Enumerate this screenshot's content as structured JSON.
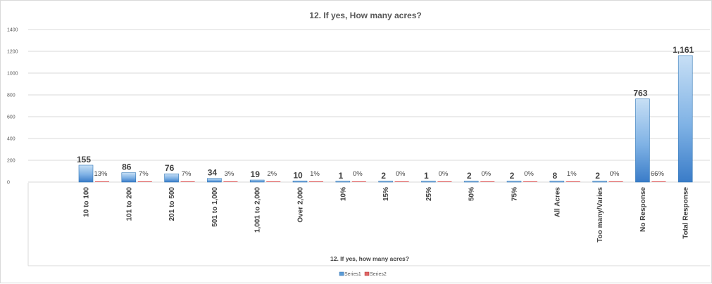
{
  "chart_data": {
    "type": "bar",
    "title": "12.  If yes, How many acres?",
    "xlabel": "12. If yes, how many acres?",
    "ylabel": "",
    "ylim": [
      0,
      1400
    ],
    "yticks": [
      0,
      200,
      400,
      600,
      800,
      1000,
      1200,
      1400
    ],
    "grid": true,
    "legend_position": "bottom",
    "categories": [
      "10 to 100",
      "101 to 200",
      "201 to 500",
      "501 to 1,000",
      "1,001 to 2,000",
      "Over 2,000",
      "10%",
      "15%",
      "25%",
      "50%",
      "75%",
      "All Acres",
      "Too many/Varies",
      "No Response",
      "Total Response"
    ],
    "series": [
      {
        "name": "Series1",
        "values": [
          155,
          86,
          76,
          34,
          19,
          10,
          1,
          2,
          1,
          2,
          2,
          8,
          2,
          763,
          1161
        ],
        "labels": [
          "155",
          "86",
          "76",
          "34",
          "19",
          "10",
          "1",
          "2",
          "1",
          "2",
          "2",
          "8",
          "2",
          "763",
          "1,161"
        ],
        "color": "#5b9bd5"
      },
      {
        "name": "Series2",
        "values": [
          0.13,
          0.07,
          0.07,
          0.03,
          0.02,
          0.01,
          0,
          0,
          0,
          0,
          0,
          0.01,
          0,
          0.66,
          null
        ],
        "labels": [
          "13%",
          "7%",
          "7%",
          "3%",
          "2%",
          "1%",
          "0%",
          "0%",
          "0%",
          "0%",
          "0%",
          "1%",
          "0%",
          "66%",
          ""
        ],
        "color": "#e06666"
      }
    ]
  }
}
